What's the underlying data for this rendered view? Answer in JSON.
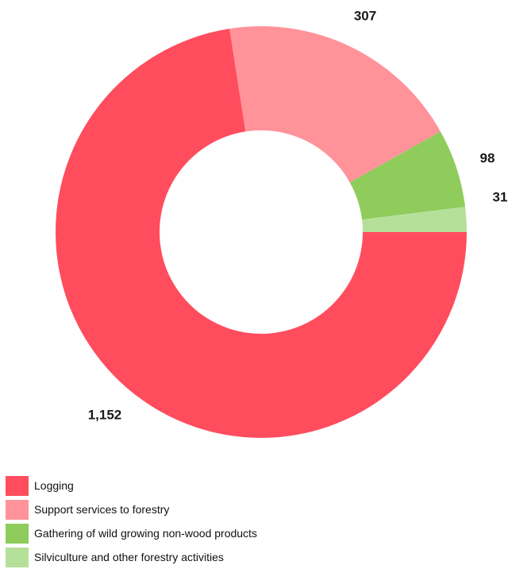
{
  "chart_data": {
    "type": "pie",
    "donut": true,
    "categories": [
      "Logging",
      "Support services to forestry",
      "Gathering of wild growing non-wood products",
      "Silviculture and other forestry activities"
    ],
    "values": [
      1152,
      307,
      98,
      31
    ],
    "value_labels": [
      "1,152",
      "307",
      "98",
      "31"
    ],
    "colors": [
      "#ff4d5e",
      "#ff9399",
      "#8fcc5c",
      "#b5e09a"
    ],
    "legend_position": "bottom-left",
    "title": "",
    "xlabel": "",
    "ylabel": ""
  }
}
